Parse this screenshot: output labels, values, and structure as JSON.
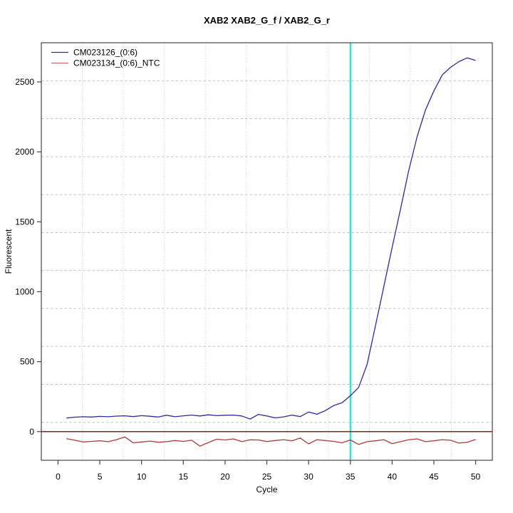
{
  "title": "XAB2  XAB2_G_f / XAB2_G_r",
  "axes": {
    "xlabel": "Cycle",
    "ylabel": "Fluorescent"
  },
  "legend": {
    "position": "top-left",
    "entries": [
      {
        "label": "CM023126_(0:6)",
        "color": "#2B2B9E"
      },
      {
        "label": "CM023134_(0:6)_NTC",
        "color": "#C46A6A"
      }
    ]
  },
  "colors": {
    "sample_line": "#2B2B9E",
    "ntc_line": "#AC3B3B",
    "threshold_line": "#8F2020",
    "ct_marker_line": "#00E5E6",
    "grid": "#C2C2C2",
    "box": "#454545",
    "background": "#FFFFFF"
  },
  "chart_data": {
    "type": "line",
    "title": "XAB2  XAB2_G_f / XAB2_G_r",
    "xlabel": "Cycle",
    "ylabel": "Fluorescent",
    "x": [
      1,
      2,
      3,
      4,
      5,
      6,
      7,
      8,
      9,
      10,
      11,
      12,
      13,
      14,
      15,
      16,
      17,
      18,
      19,
      20,
      21,
      22,
      23,
      24,
      25,
      26,
      27,
      28,
      29,
      30,
      31,
      32,
      33,
      34,
      35,
      36,
      37,
      38,
      39,
      40,
      41,
      42,
      43,
      44,
      45,
      46,
      47,
      48,
      49,
      50
    ],
    "series": [
      {
        "name": "CM023126_(0:6)",
        "color": "#2B2B9E",
        "values": [
          97,
          103,
          106,
          104,
          109,
          106,
          111,
          113,
          107,
          114,
          110,
          104,
          117,
          106,
          113,
          118,
          112,
          120,
          114,
          117,
          118,
          112,
          90,
          123,
          112,
          98,
          105,
          118,
          107,
          140,
          124,
          150,
          186,
          206,
          256,
          316,
          480,
          755,
          1035,
          1315,
          1590,
          1870,
          2110,
          2300,
          2435,
          2550,
          2605,
          2645,
          2672,
          2653
        ]
      },
      {
        "name": "CM023134_(0:6)_NTC",
        "color": "#AC3B3B",
        "values": [
          -50,
          -62,
          -74,
          -70,
          -66,
          -72,
          -58,
          -38,
          -80,
          -74,
          -68,
          -76,
          -72,
          -64,
          -70,
          -62,
          -104,
          -78,
          -54,
          -60,
          -52,
          -71,
          -59,
          -60,
          -71,
          -64,
          -58,
          -66,
          -46,
          -88,
          -58,
          -64,
          -70,
          -80,
          -60,
          -92,
          -72,
          -66,
          -58,
          -86,
          -72,
          -58,
          -52,
          -72,
          -66,
          -58,
          -62,
          -82,
          -76,
          -56
        ]
      }
    ],
    "hlines": [
      {
        "y": 0,
        "color": "#8F2020",
        "meaning": "threshold"
      }
    ],
    "vlines": [
      {
        "x": 35,
        "color": "#00E5E6",
        "meaning": "Ct"
      }
    ],
    "xticks": [
      0,
      5,
      10,
      15,
      20,
      25,
      30,
      35,
      40,
      45,
      50
    ],
    "yticks": [
      0,
      500,
      1000,
      1500,
      2000,
      2500
    ],
    "xlim": [
      -2,
      52
    ],
    "ylim": [
      -205,
      2780
    ],
    "grid": {
      "nx": 11,
      "ny": 11,
      "on": true
    },
    "legend_position": "top-left"
  }
}
